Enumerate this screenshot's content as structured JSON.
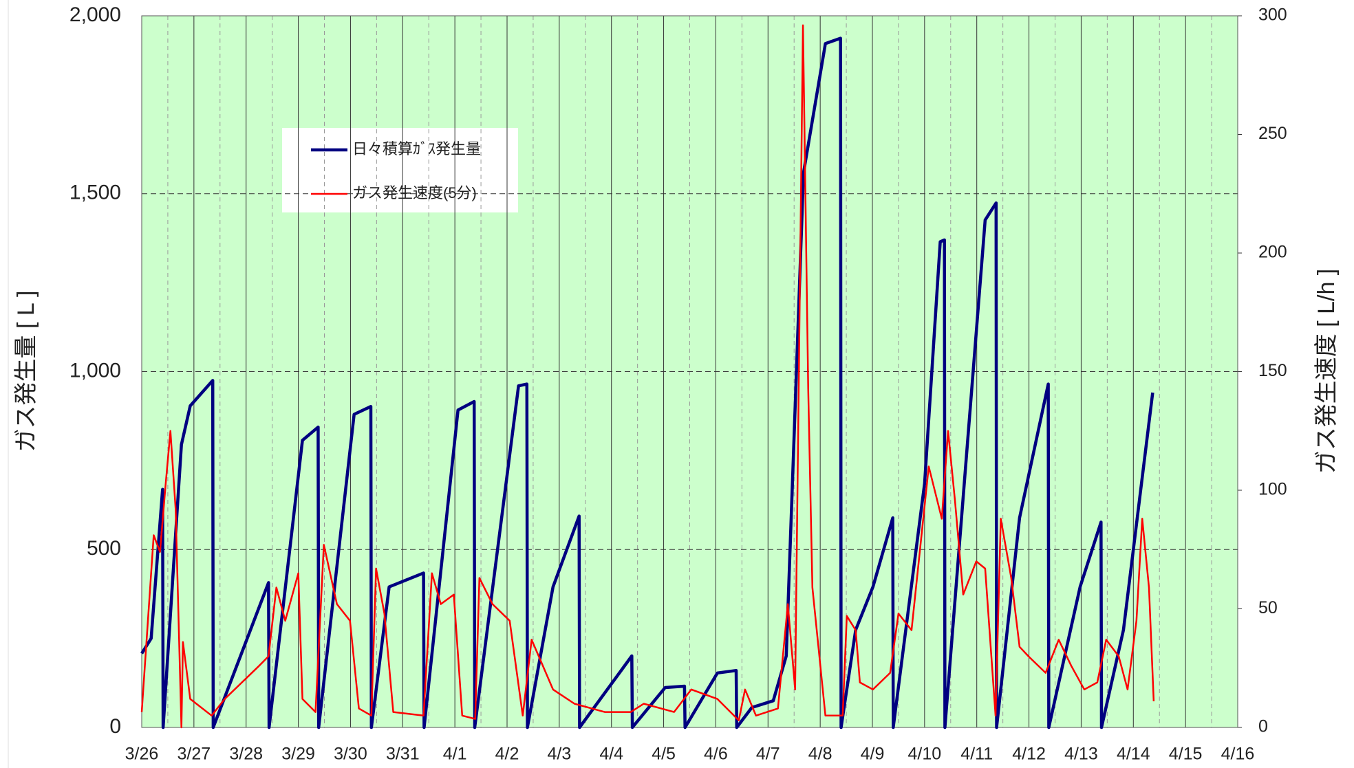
{
  "chart_data": {
    "type": "line",
    "ylabel": "ガス発生量 [ L ]",
    "y2label": "ガス発生速度 [ L/h ]",
    "xlim": [
      0,
      21
    ],
    "xticks": [
      {
        "value": 0,
        "label": "3/26"
      },
      {
        "value": 1,
        "label": "3/27"
      },
      {
        "value": 2,
        "label": "3/28"
      },
      {
        "value": 3,
        "label": "3/29"
      },
      {
        "value": 4,
        "label": "3/30"
      },
      {
        "value": 5,
        "label": "3/31"
      },
      {
        "value": 6,
        "label": "4/1"
      },
      {
        "value": 7,
        "label": "4/2"
      },
      {
        "value": 8,
        "label": "4/3"
      },
      {
        "value": 9,
        "label": "4/4"
      },
      {
        "value": 10,
        "label": "4/5"
      },
      {
        "value": 11,
        "label": "4/6"
      },
      {
        "value": 12,
        "label": "4/7"
      },
      {
        "value": 13,
        "label": "4/8"
      },
      {
        "value": 14,
        "label": "4/9"
      },
      {
        "value": 15,
        "label": "4/10"
      },
      {
        "value": 16,
        "label": "4/11"
      },
      {
        "value": 17,
        "label": "4/12"
      },
      {
        "value": 18,
        "label": "4/13"
      },
      {
        "value": 19,
        "label": "4/14"
      },
      {
        "value": 20,
        "label": "4/15"
      },
      {
        "value": 21,
        "label": "4/16"
      }
    ],
    "ylim": [
      0,
      2000
    ],
    "yticks": [
      0,
      500,
      {
        "value": 1000,
        "label": "1,000"
      },
      {
        "value": 1500,
        "label": "1,500"
      },
      {
        "value": 2000,
        "label": "2,000"
      }
    ],
    "y2lim": [
      0,
      300
    ],
    "y2ticks": [
      0,
      50,
      100,
      150,
      200,
      250,
      300
    ],
    "grid": true,
    "series": [
      {
        "name": "日々積算ｶﾞｽ発生量",
        "color": "#000080",
        "axis": "y",
        "x": [
          0,
          0.18,
          0.4,
          0.41,
          0.76,
          0.93,
          1.36,
          1.37,
          2.43,
          2.44,
          3.08,
          3.38,
          3.39,
          4.07,
          4.39,
          4.4,
          4.74,
          5.4,
          5.41,
          6.06,
          6.37,
          6.38,
          7.22,
          7.38,
          7.39,
          7.88,
          8.38,
          8.39,
          9.39,
          9.4,
          10.03,
          10.4,
          10.41,
          11.03,
          11.39,
          11.4,
          11.69,
          12.1,
          12.35,
          12.68,
          13.1,
          13.39,
          13.4,
          13.68,
          14.01,
          14.39,
          14.4,
          15,
          15.3,
          15.38,
          15.39,
          16.16,
          16.37,
          16.38,
          16.82,
          17.37,
          17.38,
          17.98,
          18.38,
          18.39,
          18.81,
          19.37
        ],
        "values": [
          208,
          250,
          669,
          0,
          795,
          904,
          975,
          0,
          407,
          0,
          807,
          844,
          0,
          880,
          902,
          0,
          395,
          434,
          0,
          892,
          916,
          0,
          960,
          965,
          0,
          395,
          594,
          0,
          201,
          0,
          112,
          116,
          0,
          153,
          160,
          0,
          56,
          75,
          201,
          1559,
          1922,
          1937,
          0,
          274,
          395,
          589,
          0,
          686,
          1365,
          1370,
          0,
          1426,
          1474,
          0,
          589,
          965,
          0,
          395,
          577,
          0,
          274,
          941
        ]
      },
      {
        "name": "ガス発生速度(5分)",
        "color": "#ff0000",
        "axis": "y2",
        "x": [
          0,
          0.23,
          0.35,
          0.46,
          0.55,
          0.65,
          0.76,
          0.79,
          0.93,
          1.34,
          1.59,
          2.25,
          2.43,
          2.58,
          2.75,
          3.0,
          3.08,
          3.33,
          3.49,
          3.74,
          3.99,
          4.16,
          4.4,
          4.49,
          4.65,
          4.82,
          5.4,
          5.56,
          5.73,
          5.98,
          6.14,
          6.39,
          6.47,
          6.72,
          7.05,
          7.3,
          7.47,
          7.88,
          8.29,
          8.87,
          9.37,
          9.62,
          10.2,
          10.53,
          11.03,
          11.44,
          11.56,
          11.77,
          12.19,
          12.38,
          12.52,
          12.67,
          12.77,
          12.85,
          13.1,
          13.43,
          13.51,
          13.68,
          13.76,
          14.01,
          14.34,
          14.5,
          14.75,
          15.08,
          15.33,
          15.45,
          15.58,
          15.74,
          15.99,
          16.16,
          16.36,
          16.46,
          16.66,
          16.82,
          16.99,
          17.32,
          17.57,
          17.81,
          18.06,
          18.31,
          18.48,
          18.72,
          18.89,
          19.06,
          19.17,
          19.3,
          19.39
        ],
        "values": [
          6.5,
          81,
          74,
          103,
          125,
          92,
          0,
          36,
          12,
          5,
          12,
          26,
          30,
          59,
          45,
          65,
          12,
          6.5,
          77,
          52,
          45,
          8,
          5,
          67,
          48,
          6.5,
          5,
          65,
          52,
          56,
          5,
          3.6,
          63,
          52,
          45,
          5,
          37,
          16,
          10,
          6.5,
          6.5,
          10,
          6.5,
          16,
          12,
          3,
          16,
          5,
          8,
          52,
          16,
          296,
          143,
          59,
          5,
          5,
          47,
          41,
          19,
          16,
          23,
          48,
          41,
          110,
          88,
          125,
          96,
          56,
          70,
          67,
          5,
          88,
          63,
          34,
          30,
          23,
          37,
          26,
          16,
          19,
          37,
          30,
          16,
          45,
          88,
          59,
          11
        ]
      }
    ]
  }
}
